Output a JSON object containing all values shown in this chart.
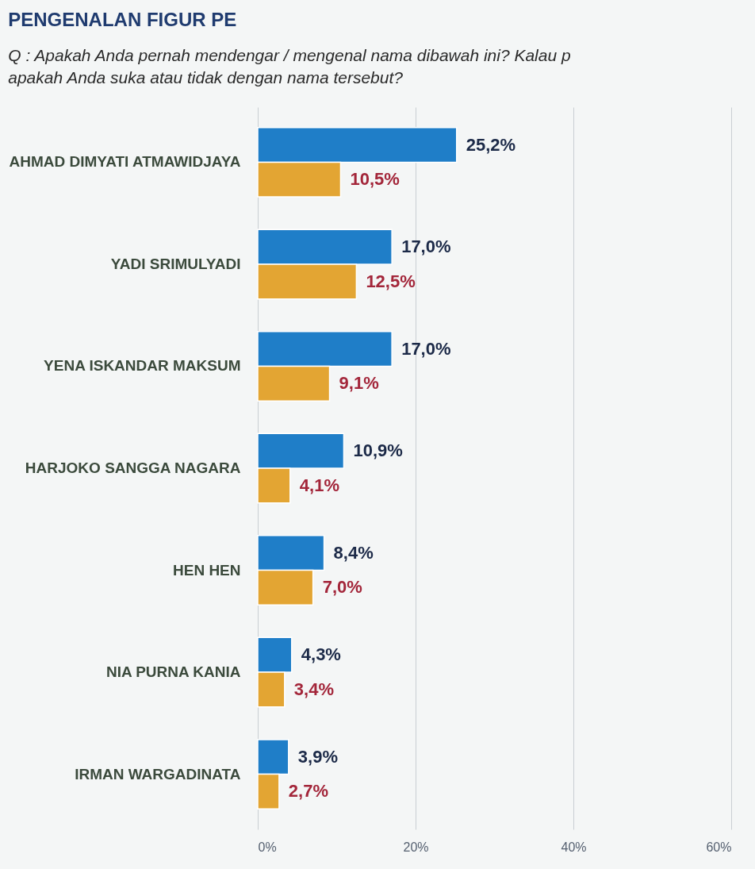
{
  "chart_data": {
    "type": "bar",
    "orientation": "horizontal",
    "title": "PENGENALAN FIGUR PE",
    "subtitle": "Q : Apakah Anda pernah mendengar / mengenal nama dibawah ini?  Kalau p\napakah Anda suka atau tidak dengan nama tersebut?",
    "categories": [
      "AHMAD DIMYATI ATMAWIDJAYA",
      "YADI SRIMULYADI",
      "YENA ISKANDAR MAKSUM",
      "HARJOKO SANGGA NAGARA",
      "HEN HEN",
      "NIA PURNA KANIA",
      "IRMAN WARGADINATA"
    ],
    "series": [
      {
        "color": "#1f7ec8",
        "values": [
          25.2,
          17.0,
          17.0,
          10.9,
          8.4,
          4.3,
          3.9
        ],
        "value_labels": [
          "25,2%",
          "17,0%",
          "17,0%",
          "10,9%",
          "8,4%",
          "4,3%",
          "3,9%"
        ]
      },
      {
        "color": "#e3a533",
        "values": [
          10.5,
          12.5,
          9.1,
          4.1,
          7.0,
          3.4,
          2.7
        ],
        "value_labels": [
          "10,5%",
          "12,5%",
          "9,1%",
          "4,1%",
          "7,0%",
          "3,4%",
          "2,7%"
        ]
      }
    ],
    "xlim": [
      0,
      60
    ],
    "xticks": [
      {
        "value": 0,
        "label": "0%"
      },
      {
        "value": 20,
        "label": "20%"
      },
      {
        "value": 40,
        "label": "40%"
      },
      {
        "value": 60,
        "label": "60%"
      }
    ],
    "grid": "x"
  }
}
